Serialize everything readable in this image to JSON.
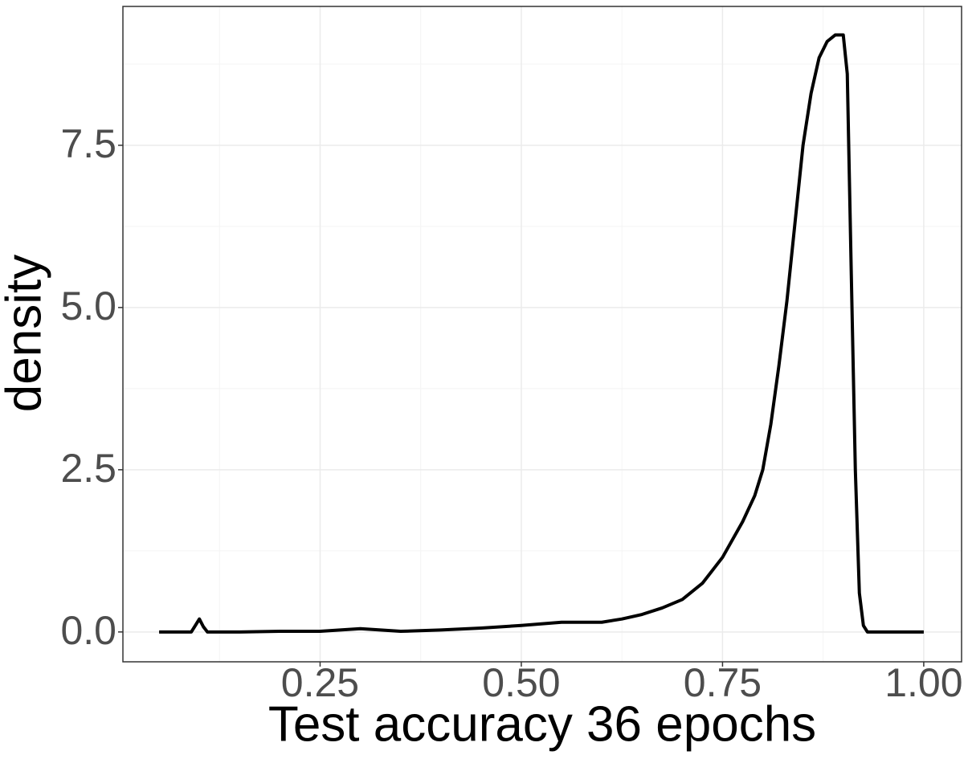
{
  "chart_data": {
    "type": "line",
    "xlabel": "Test accuracy 36 epochs",
    "ylabel": "density",
    "x": [
      0.05,
      0.09,
      0.095,
      0.1,
      0.105,
      0.11,
      0.15,
      0.2,
      0.25,
      0.3,
      0.35,
      0.4,
      0.45,
      0.5,
      0.55,
      0.6,
      0.625,
      0.65,
      0.675,
      0.7,
      0.725,
      0.75,
      0.775,
      0.79,
      0.8,
      0.81,
      0.82,
      0.83,
      0.84,
      0.85,
      0.86,
      0.87,
      0.88,
      0.89,
      0.9,
      0.905,
      0.91,
      0.915,
      0.92,
      0.925,
      0.93,
      0.95,
      1.0
    ],
    "values": [
      0,
      0,
      0.1,
      0.2,
      0.08,
      0,
      0,
      0.01,
      0.01,
      0.05,
      0.01,
      0.03,
      0.06,
      0.1,
      0.15,
      0.15,
      0.2,
      0.27,
      0.37,
      0.5,
      0.75,
      1.15,
      1.7,
      2.1,
      2.5,
      3.2,
      4.1,
      5.1,
      6.3,
      7.5,
      8.3,
      8.85,
      9.1,
      9.2,
      9.2,
      8.6,
      5.5,
      2.5,
      0.6,
      0.1,
      0,
      0,
      0
    ],
    "color": "#000000",
    "xlim": [
      0.005,
      1.047
    ],
    "ylim": [
      -0.46,
      9.64
    ],
    "xticks": [
      {
        "value": 0.25,
        "label": "0.25"
      },
      {
        "value": 0.5,
        "label": "0.50"
      },
      {
        "value": 0.75,
        "label": "0.75"
      },
      {
        "value": 1.0,
        "label": "1.00"
      }
    ],
    "yticks": [
      {
        "value": 0,
        "label": "0.0"
      },
      2.5,
      {
        "value": 5,
        "label": "5.0"
      },
      7.5
    ],
    "x_minor_grid": [
      0.125,
      0.375,
      0.625,
      0.875
    ],
    "y_minor_grid": [
      1.25,
      3.75,
      6.25,
      8.75
    ],
    "grid": true
  }
}
